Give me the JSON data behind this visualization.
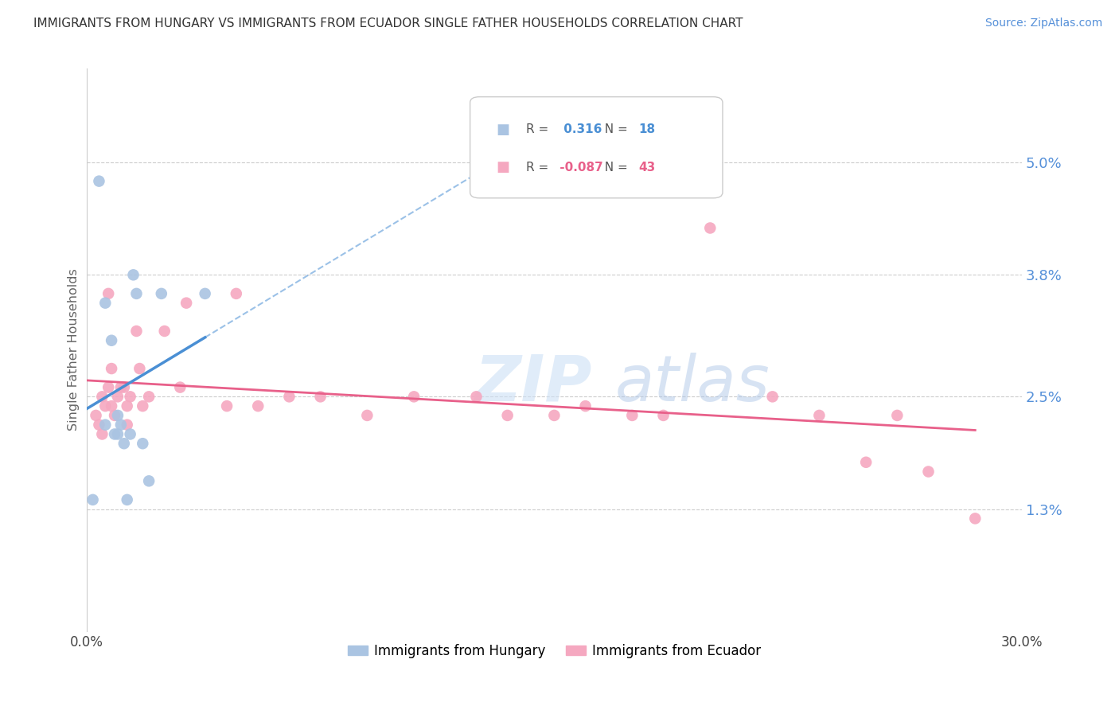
{
  "title": "IMMIGRANTS FROM HUNGARY VS IMMIGRANTS FROM ECUADOR SINGLE FATHER HOUSEHOLDS CORRELATION CHART",
  "source": "Source: ZipAtlas.com",
  "ylabel": "Single Father Households",
  "xlim": [
    0.0,
    30.0
  ],
  "ylim": [
    0.0,
    6.0
  ],
  "legend_r_hungary": "0.316",
  "legend_n_hungary": "18",
  "legend_r_ecuador": "-0.087",
  "legend_n_ecuador": "43",
  "hungary_color": "#aac4e2",
  "ecuador_color": "#f5a8c0",
  "hungary_line_color": "#4a8fd4",
  "ecuador_line_color": "#e8608a",
  "watermark_zip": "ZIP",
  "watermark_atlas": "atlas",
  "hungary_x": [
    0.2,
    0.4,
    0.6,
    0.6,
    0.8,
    0.9,
    1.0,
    1.0,
    1.1,
    1.2,
    1.3,
    1.4,
    1.5,
    1.6,
    1.8,
    2.0,
    2.4,
    3.8
  ],
  "hungary_y": [
    1.4,
    4.8,
    3.5,
    2.2,
    3.1,
    2.1,
    2.3,
    2.1,
    2.2,
    2.0,
    1.4,
    2.1,
    3.8,
    3.6,
    2.0,
    1.6,
    3.6,
    3.6
  ],
  "ecuador_x": [
    0.3,
    0.4,
    0.5,
    0.5,
    0.6,
    0.7,
    0.7,
    0.8,
    0.8,
    0.9,
    1.0,
    1.1,
    1.2,
    1.3,
    1.3,
    1.4,
    1.6,
    1.7,
    1.8,
    2.0,
    2.5,
    3.0,
    3.2,
    4.5,
    4.8,
    5.5,
    6.5,
    7.5,
    9.0,
    10.5,
    12.5,
    13.5,
    15.0,
    16.0,
    17.5,
    18.5,
    20.0,
    22.0,
    23.5,
    25.0,
    26.0,
    27.0,
    28.5
  ],
  "ecuador_y": [
    2.3,
    2.2,
    2.5,
    2.1,
    2.4,
    3.6,
    2.6,
    2.4,
    2.8,
    2.3,
    2.5,
    2.6,
    2.6,
    2.4,
    2.2,
    2.5,
    3.2,
    2.8,
    2.4,
    2.5,
    3.2,
    2.6,
    3.5,
    2.4,
    3.6,
    2.4,
    2.5,
    2.5,
    2.3,
    2.5,
    2.5,
    2.3,
    2.3,
    2.4,
    2.3,
    2.3,
    4.3,
    2.5,
    2.3,
    1.8,
    2.3,
    1.7,
    1.2
  ],
  "ytick_values": [
    1.3,
    2.5,
    3.8,
    5.0
  ],
  "ytick_labels": [
    "1.3%",
    "2.5%",
    "3.8%",
    "5.0%"
  ],
  "xtick_values": [
    0.0,
    6.0,
    12.0,
    18.0,
    24.0,
    30.0
  ],
  "xtick_labels": [
    "0.0%",
    "",
    "",
    "",
    "",
    "30.0%"
  ]
}
